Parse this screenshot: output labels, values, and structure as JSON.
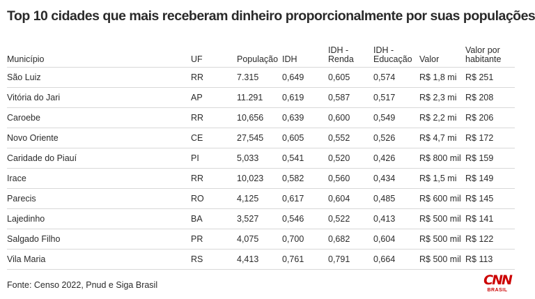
{
  "title": "Top 10 cidades que mais receberam dinheiro proporcionalmente por suas populações",
  "columns": [
    "Município",
    "UF",
    "População",
    "IDH",
    "IDH - Renda",
    "IDH - Educação",
    "Valor",
    "Valor por habitante"
  ],
  "rows": [
    [
      "São Luiz",
      "RR",
      "7.315",
      "0,649",
      "0,605",
      "0,574",
      "R$ 1,8 mi",
      "R$ 251"
    ],
    [
      "Vitória do Jari",
      "AP",
      "11.291",
      "0,619",
      "0,587",
      "0,517",
      "R$ 2,3 mi",
      "R$ 208"
    ],
    [
      "Caroebe",
      "RR",
      "10,656",
      "0,639",
      "0,600",
      "0,549",
      "R$ 2,2 mi",
      "R$ 206"
    ],
    [
      "Novo Oriente",
      "CE",
      "27,545",
      "0,605",
      "0,552",
      "0,526",
      "R$ 4,7 mi",
      "R$ 172"
    ],
    [
      "Caridade do Piauí",
      "PI",
      "5,033",
      "0,541",
      "0,520",
      "0,426",
      "R$ 800 mil",
      "R$ 159"
    ],
    [
      "Irace",
      "RR",
      "10,023",
      "0,582",
      "0,560",
      "0,434",
      "R$ 1,5 mi",
      "R$ 149"
    ],
    [
      "Parecis",
      "RO",
      "4,125",
      "0,617",
      "0,604",
      "0,485",
      "R$ 600 mil",
      "R$ 145"
    ],
    [
      "Lajedinho",
      "BA",
      "3,527",
      "0,546",
      "0,522",
      "0,413",
      "R$ 500 mil",
      "R$ 141"
    ],
    [
      "Salgado Filho",
      "PR",
      "4,075",
      "0,700",
      "0,682",
      "0,604",
      "R$ 500 mil",
      "R$ 122"
    ],
    [
      "Vila Maria",
      "RS",
      "4,413",
      "0,761",
      "0,791",
      "0,664",
      "R$ 500 mil",
      "R$ 113"
    ]
  ],
  "footer": "Fonte: Censo 2022, Pnud e Siga Brasil",
  "logo": {
    "brand": "CNN",
    "sub": "BRASIL",
    "color": "#cc0000"
  }
}
